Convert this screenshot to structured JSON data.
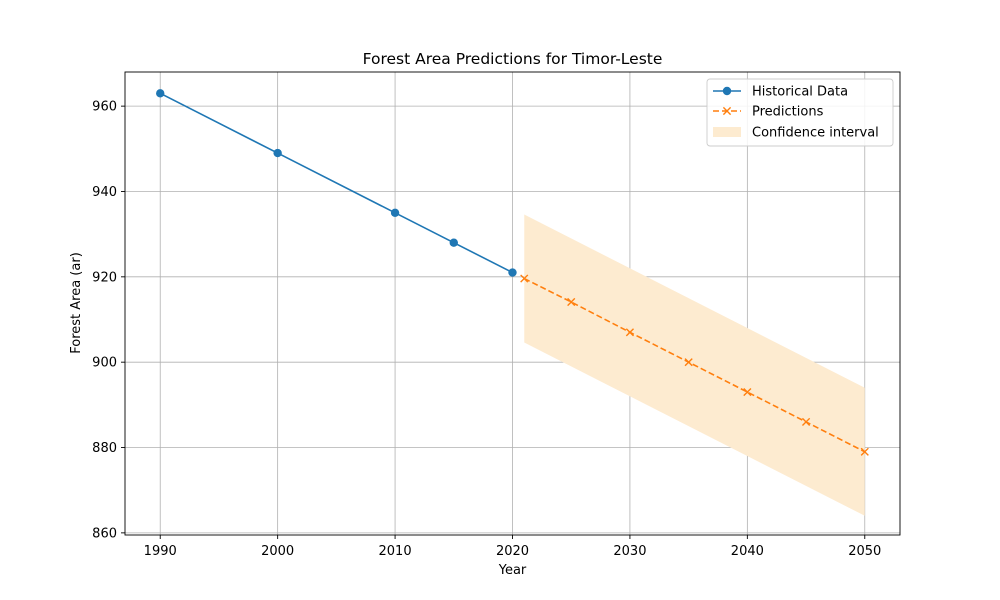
{
  "chart_data": {
    "type": "line",
    "title": "Forest Area Predictions for Timor-Leste",
    "xlabel": "Year",
    "ylabel": "Forest Area (ar)",
    "xlim": [
      1987,
      2053
    ],
    "ylim": [
      859.5,
      968
    ],
    "xticks": [
      1990,
      2000,
      2010,
      2020,
      2030,
      2040,
      2050
    ],
    "yticks": [
      860,
      880,
      900,
      920,
      940,
      960
    ],
    "grid": true,
    "legend_position": "top-right",
    "series": [
      {
        "name": "Historical Data",
        "style": "solid",
        "marker": "circle",
        "color": "#1f77b4",
        "x": [
          1990,
          2000,
          2010,
          2015,
          2020
        ],
        "y": [
          963,
          949,
          935,
          928,
          921
        ]
      },
      {
        "name": "Predictions",
        "style": "dashed",
        "marker": "x",
        "color": "#ff7f0e",
        "x": [
          2021,
          2025,
          2030,
          2035,
          2040,
          2045,
          2050
        ],
        "y": [
          919.6,
          914.1,
          907,
          900,
          893,
          886,
          879
        ]
      }
    ],
    "confidence_interval": {
      "name": "Confidence interval",
      "color": "#fdebd0",
      "x": [
        2021,
        2050
      ],
      "lower": [
        904.6,
        864
      ],
      "upper": [
        934.6,
        894
      ]
    }
  }
}
